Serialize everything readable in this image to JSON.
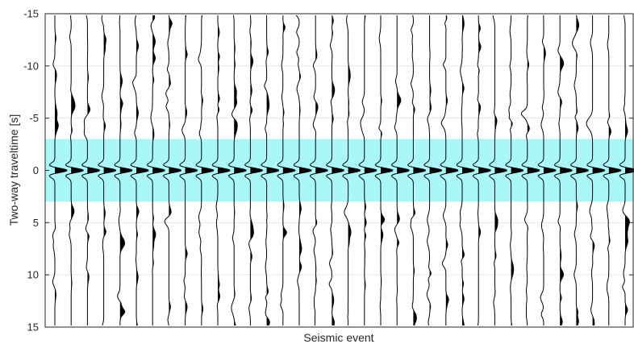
{
  "chart_data": {
    "type": "seismic-wiggle",
    "xlabel": "Seismic event",
    "ylabel": "Two-way traveltime [s]",
    "ylim": [
      -15,
      15
    ],
    "y_reversed": true,
    "yticks": [
      -15,
      -10,
      -5,
      0,
      5,
      10,
      15
    ],
    "ytick_labels": [
      "-15",
      "-10",
      "-5",
      "0",
      "5",
      "10",
      "15"
    ],
    "trace_count": 36,
    "grid": true,
    "highlight_band": {
      "y_from": -3,
      "y_to": 3,
      "color": "#aaf7f7"
    },
    "event": {
      "center_time": 0,
      "peak_times": [
        -1.6,
        0,
        1.6
      ],
      "trough_times": [
        -0.8,
        0.8
      ]
    },
    "colors": {
      "trace": "#000000",
      "fill": "#000000",
      "band": "#aaf7f7",
      "grid": "#e6e6e6",
      "axis": "#262626"
    }
  }
}
